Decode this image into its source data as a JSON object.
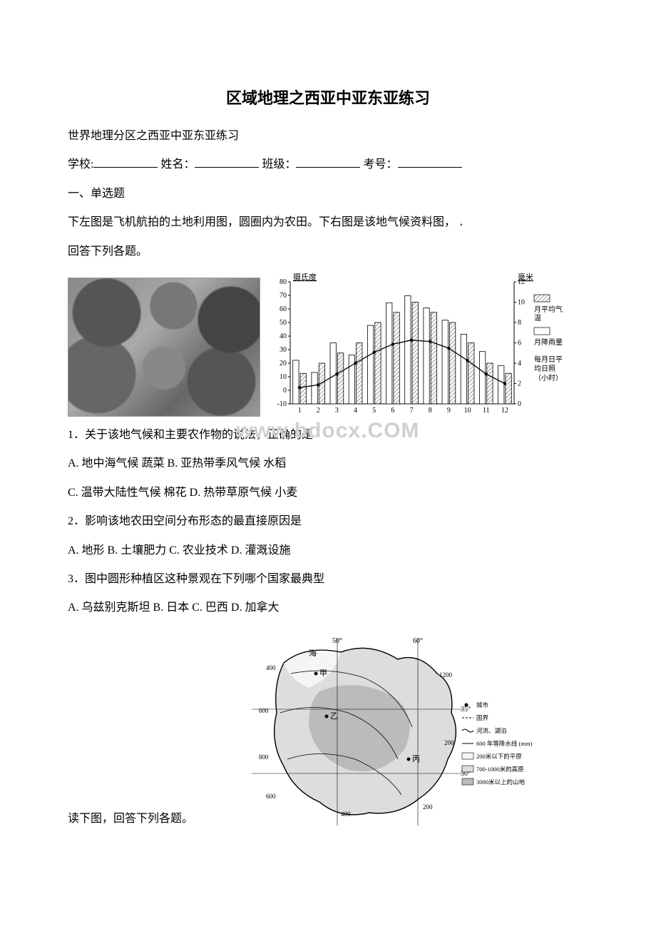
{
  "title": "区域地理之西亚中亚东亚练习",
  "title_fontsize": 22,
  "body_fontsize": 16,
  "subtitle": "世界地理分区之西亚中亚东亚练习",
  "form": {
    "school_label": "学校:",
    "name_label": "姓名：",
    "class_label": "班级：",
    "examno_label": "考号："
  },
  "section1": "一、单选题",
  "intro1a": "下左图是飞机航拍的土地利用图，圆圈内为农田。下右图是该地气候资料图，",
  "intro1b": "回答下列各题。",
  "dot": "．",
  "climate_chart": {
    "type": "combined_bar_line",
    "y1_label_top": "摄氏度",
    "y2_label_top": "毫米",
    "x_categories": [
      "1",
      "2",
      "3",
      "4",
      "5",
      "6",
      "7",
      "8",
      "9",
      "10",
      "11",
      "12"
    ],
    "y1_ticks": [
      "-10",
      "0",
      "10",
      "20",
      "30",
      "40",
      "50",
      "60",
      "70",
      "80"
    ],
    "y2_ticks": [
      "0",
      "2",
      "4",
      "6",
      "8",
      "10",
      "12"
    ],
    "temp_values": [
      2,
      4,
      12,
      20,
      28,
      34,
      37,
      36,
      31,
      22,
      12,
      5
    ],
    "precip_values": [
      25,
      18,
      35,
      28,
      45,
      58,
      62,
      55,
      48,
      40,
      30,
      22
    ],
    "sunshine_values": [
      3,
      4,
      5,
      6,
      8,
      9,
      10,
      9,
      8,
      6,
      4,
      3
    ],
    "legend": {
      "temp": "月平均气温",
      "precip": "月降雨量",
      "sun_l1": "每月日平",
      "sun_l2": "均日照",
      "sun_l3": "（小时）"
    },
    "colors": {
      "axis": "#000000",
      "bar_fill": "#ffffff",
      "bar_stroke": "#000000",
      "line": "#000000",
      "hatch_fill": "#888888"
    },
    "font_size": 10
  },
  "q1": {
    "stem": "1．关于该地气候和主要农作物的说法，正确的是",
    "optAB": "A. 地中海气候 蔬菜 B. 亚热带季风气候 水稻",
    "optCD": "C. 温带大陆性气候 棉花 D. 热带草原气候 小麦"
  },
  "q2": {
    "stem": "2．影响该地农田空间分布形态的最直接原因是",
    "opts": "A. 地形 B. 土壤肥力 C. 农业技术 D. 灌溉设施"
  },
  "q3": {
    "stem": "3．图中圆形种植区这种景观在下列哪个国家最典型",
    "opts": "A. 乌兹别克斯坦 B. 日本 C. 巴西 D. 加拿大"
  },
  "map": {
    "lon_labels": [
      "50°",
      "60°"
    ],
    "lat_labels": [
      "35°",
      "30°"
    ],
    "iso_labels": [
      "400",
      "600",
      "800",
      "600",
      "400",
      "1200",
      "200",
      "200"
    ],
    "city_marks": [
      "甲",
      "乙",
      "丙"
    ],
    "legend": {
      "city": "城市",
      "border": "国界",
      "river": "河流、湖泊",
      "isoline": "600 年等降水线 (mm)",
      "plain": "200米以下的平原",
      "plateau": "700-1000米的高原",
      "mountain": "3000米以上的山地"
    },
    "colors": {
      "outline": "#000000",
      "land_light": "#f5f5f5",
      "land_mid": "#dddddd",
      "land_dark": "#bbbbbb"
    }
  },
  "intro2": "读下图，回答下列各题。",
  "watermark": "www.bdocx.COM"
}
